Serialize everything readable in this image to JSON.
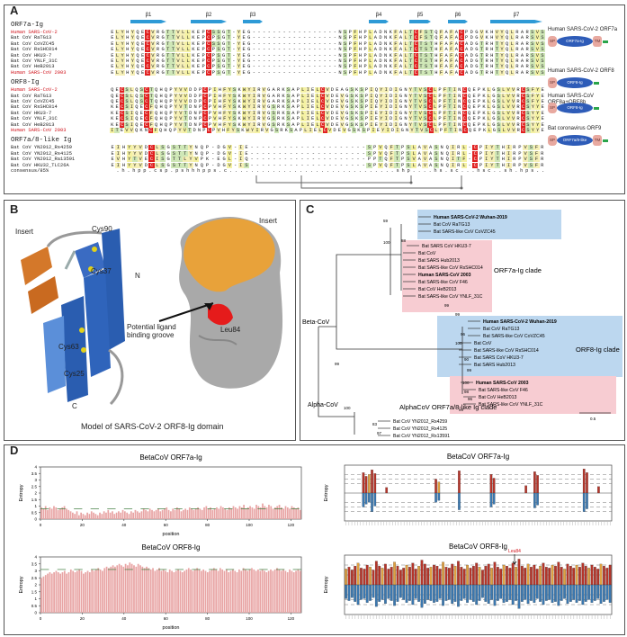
{
  "figure": {
    "panel_labels": [
      "A",
      "B",
      "C",
      "D"
    ]
  },
  "panelA": {
    "strand_labels": [
      "β1",
      "β2",
      "β3",
      "β4",
      "β5",
      "β6",
      "β7"
    ],
    "groups": [
      {
        "title": "ORF7a-Ig",
        "rows": [
          {
            "name": "Human SARS-CoV-2",
            "seq": "ELYHYQECVRGTTVLLKEPCSSGT-YEG-----------------NSPFHPLADNKFALTCFSTQFAFACPDGVKHVYQLRARSVS",
            "red": true
          },
          {
            "name": "Bat CoV RaTG13",
            "seq": "ELYHYQECVRGTTVLLKEPCPSGT-YEG-----------------NSPFHPLADNKFALTCFSTQFAFACPDGVKHVYQLRARSVS",
            "red": false
          },
          {
            "name": "Bat CoV CoVZC45",
            "seq": "ELYHYQECVRGTTVLLKEPCSSGT-YEG-----------------NSPFHPLADNKFALTCTSTHFAFACADGTRHTYQLRARSVS",
            "red": false
          },
          {
            "name": "Bat CoV RsSHC014",
            "seq": "ELYHYQECVRGTTVLLKEPCPSGT-YEG-----------------NSPFHPLADNKFALTCTSTHFAFACADGTRHTYQLRARSVS",
            "red": false
          },
          {
            "name": "Bat CoV HKU3-7",
            "seq": "ELYHYQECVRGTTVLLKEPCPSGT-YEG-----------------NSPFHPLADNKFALTCTSTHFAFACADGTRHTYQLRARSVS",
            "red": false
          },
          {
            "name": "Bat CoV YNLF_31C",
            "seq": "ELYHYQECVRGTTVLLKEPCPSGT-YEG-----------------NSPFHPLADNKFALTCTSTHFAFACADGTRHTYQLRARSVS",
            "red": false
          },
          {
            "name": "Bat CoV HeB2013",
            "seq": "ELYHYQECVRGTTVLLKEPCPSGT-YEG-----------------NSPFHPLADNKFALTCTSTHFAFACADGTRHTYQLRARSVS",
            "red": false
          },
          {
            "name": "Human SARS-CoV 2003",
            "seq": "ELYHYQECVRGTTVLLKEPCPSGT-YEG-----------------NSPFHPLADNKFALTCTSTHFAFACADGTRHTYQLRARSVS",
            "red": true
          }
        ]
      },
      {
        "title": "ORF8-Ig",
        "rows": [
          {
            "name": "Human SARS-CoV-2",
            "seq": "QECSLQSCTQHQPYVVDDPCPIHFYSKWYIRVGARKSAPLIELCVDEAGSKSPIQYIDIGNYTVSCLPFTINCQEPKLGSLVVRCSFYE",
            "red": true
          },
          {
            "name": "Bat CoV RaTG13",
            "seq": "QECSLQSCTQHQPYVVDDPCPIHFYSKWYIRVGARKSAPLIELCVDEVGSKSPIQYIDIGNYTVSCLPFTINCQEPKLGSLVVRCSFYE",
            "red": false
          },
          {
            "name": "Bat CoV CoVZC45",
            "seq": "QECSLQSCTQHQPYVVDDPCPIHFYSKWYIRVGARKSAPLIELCVDEVGSKSPIQYIDIGNYTVSCLPFTINCQEPKLGSLVVRCSFYE",
            "red": false
          },
          {
            "name": "Bat CoV RsSHC014",
            "seq": "KECSIQECFQHQPYVTDNPCPVHFYSKWYIRVGSRKSAPLIELCVDEVGSKSPIEYIDIGNYTVSCLPFTINCQEPKLGSLVVRCSYYE",
            "red": false
          },
          {
            "name": "Bat CoV HKU3-7",
            "seq": "KECSIQECFQHQPYVTDNPCPVHFYSKWYIRVGSRKSAPLIELCVDEVGSKSPIEYIDIGNYTVSCLPFTINCQEPKLGSLVVRCSYYE",
            "red": false
          },
          {
            "name": "Bat CoV YNLF_31C",
            "seq": "KECSIQECFQHQPYVTDNPCPVHFYSKWYIRVGSRKSAPLIELCVDEVGSKSPIEYIDIGNYTVSCLPFTINCQEPKLGSLVVRCSYYE",
            "red": false
          },
          {
            "name": "Bat CoV HeB2013",
            "seq": "KECSIQECFQHQPYVTDNPCPVHFYSKWYIRVGSRKSAPLIELCVDEVGSKSPIEYIDIGNYTVSCLPFTINCQEPKLGSLVVRCSYYE",
            "red": false
          },
          {
            "name": "Human SARS-CoV 2003",
            "seq": "ITEVVQKNCFQHQPYVTDNPCPVHFYSKWYIRVGSRKSAPLIELCVDEVGSKSPIEYIDIGNYTVSCLPFTINCQEPKLGSLVVRCSYYE",
            "red": true
          }
        ]
      },
      {
        "title": "ORF7a/8-like Ig",
        "rows": [
          {
            "name": "Bat CoV YN2012_Rs4259",
            "seq": "EIHYYVDCLSGSTTYNQP-DGV-IE---------------------SPVQFTPSLAVASNQIRL-CPIYTHIRPVSFR",
            "red": false
          },
          {
            "name": "Bat CoV YN2012_Rs4125",
            "seq": "EIHYYVDCLSGSTTYNQP-DGV-IE---------------------SPVQFTPSLAVASNQIRL-CPIYTHIRPVSFR",
            "red": false
          },
          {
            "name": "Bat CoV YN2012_Ra13591",
            "seq": "EVHYTVECISGTTLYVPK-EGL-IQ---------------------PPTQFTPSVAVASNQITF-CPIYTHIRPVSFR",
            "red": false
          },
          {
            "name": "Bat CoV HKU32_TLC26A",
            "seq": "EIHYYVDCLSGSTTYNQP-DGV-IS---------------------SPVQFTPSLAVASNQIRL-CPIYTHIRPVSFR",
            "red": false
          },
          {
            "name": "consensus/85%",
            "seq": " .h.hpp.csp.pshhhpps.c...............................shp....hs.sc...hsc..sh.hps..",
            "red": false
          }
        ]
      }
    ],
    "legend": [
      {
        "title": "Human SARS-CoV-2 ORF7a",
        "domains": [
          "SP",
          "ORF7a-Ig",
          "TM"
        ]
      },
      {
        "title": "Human SARS-CoV-2 ORF8",
        "domains": [
          "SP",
          "ORF8-Ig"
        ]
      },
      {
        "title": "Human SARS-CoV ORF8a+ORF8b",
        "domains": [
          "SP",
          "ORF8-Ig"
        ]
      },
      {
        "title": "Bat coronavirus ORF9",
        "domains": [
          "SP",
          "ORF7a/8-like",
          "TM"
        ]
      }
    ]
  },
  "panelB": {
    "labels": {
      "insert_left": "Insert",
      "cys90": "Cys90",
      "cys37": "Cys37",
      "n": "N",
      "cys63": "Cys63",
      "cys25": "Cys25",
      "c": "C",
      "insert_right": "Insert",
      "groove": "Potential ligand binding groove",
      "leu84": "Leu84"
    },
    "caption": "Model of SARS-CoV-2 ORF8-Ig domain",
    "colors": {
      "helix": "#2a5db0",
      "insert": "#d4782a",
      "surface": "#a9a9a9",
      "surface_insert": "#e8a23a",
      "leu84": "#e51b1b"
    }
  },
  "panelC": {
    "beta_label": "Beta-CoV",
    "alpha_label": "Alpha-CoV",
    "clades": [
      {
        "label": "ORF7a-Ig clade",
        "color": "#bcd7ef",
        "leaves": [
          {
            "name": "Human SARS-CoV-2 Wuhan-2019",
            "bold": true
          },
          {
            "name": "Bat CoV RaTG13",
            "bold": false
          },
          {
            "name": "Bat SARS-like CoV CoVZC45",
            "bold": false
          }
        ]
      },
      {
        "label": "",
        "color": "#f7ccd2",
        "leaves": [
          {
            "name": "Bat SARS CoV HKU3-7",
            "bold": false
          },
          {
            "name": "Bat CoV",
            "bold": false
          },
          {
            "name": "Bat SARS Hub2013",
            "bold": false
          },
          {
            "name": "Bat SARS-like CoV RsSHC014",
            "bold": false
          },
          {
            "name": "Human SARS-CoV 2003",
            "bold": true
          },
          {
            "name": "Bat SARS-like CoV F46",
            "bold": false
          },
          {
            "name": "Bat CoV HeB2013",
            "bold": false
          },
          {
            "name": "Bat SARS-like CoV YNLF_31C",
            "bold": false
          }
        ]
      },
      {
        "label": "ORF8-Ig clade",
        "color": "#bcd7ef",
        "leaves": [
          {
            "name": "Human SARS-CoV-2 Wuhan-2019",
            "bold": true
          },
          {
            "name": "Bat CoV RaTG13",
            "bold": false
          },
          {
            "name": "Bat SARS-like CoV CoVZC45",
            "bold": false
          },
          {
            "name": "Bat CoV",
            "bold": false
          },
          {
            "name": "Bat SARS-like CoV RsSHC014",
            "bold": false
          },
          {
            "name": "Bat SARS CoV HKU3-7",
            "bold": false
          },
          {
            "name": "Bat SARS Hub2013",
            "bold": false
          }
        ]
      },
      {
        "label": "",
        "color": "#f7ccd2",
        "leaves": [
          {
            "name": "Human SARS-CoV 2003",
            "bold": true
          },
          {
            "name": "Bat SARS-like CoV F46",
            "bold": false
          },
          {
            "name": "Bat CoV HeB2013",
            "bold": false
          },
          {
            "name": "Bat SARS-like CoV YNLF_31C",
            "bold": false
          }
        ]
      },
      {
        "label": "AlphaCoV ORF7a/8-like Ig clade",
        "color": "#ffffff",
        "leaves": [
          {
            "name": "Bat CoV YN2012_Rs4259",
            "bold": false
          },
          {
            "name": "Bat CoV YN2012_Rs4125",
            "bold": false
          },
          {
            "name": "Bat CoV YN2012_Rs13591",
            "bold": false
          },
          {
            "name": "Bat CoV HKU32_TLC26A",
            "bold": false
          }
        ]
      }
    ],
    "bootstrap": [
      "59",
      "100",
      "88",
      "99",
      "99",
      "100",
      "99",
      "96",
      "90",
      "99",
      "100",
      "98",
      "96",
      "99",
      "100",
      "83",
      "97"
    ],
    "scale": "0.5"
  },
  "chart_data": [
    {
      "type": "bar",
      "title": "BetaCoV ORF7a-Ig",
      "xlabel": "position",
      "ylabel": "Entropy",
      "xlim": [
        0,
        125
      ],
      "ylim": [
        0,
        4
      ],
      "xticks": [
        0,
        20,
        40,
        60,
        80,
        100,
        120
      ],
      "yticks": [
        0,
        0.5,
        1,
        1.5,
        2,
        2.5,
        3,
        3.5,
        4
      ],
      "values": [
        0.9,
        0.8,
        1.0,
        0.7,
        0.9,
        0.8,
        1.0,
        0.9,
        0.7,
        0.8,
        0.9,
        1.0,
        0.8,
        0.7,
        0.6,
        0.5,
        0.4,
        0.6,
        0.3,
        0.5,
        0.4,
        0.3,
        0.5,
        0.4,
        0.6,
        0.5,
        0.4,
        0.3,
        0.5,
        0.4,
        0.6,
        0.5,
        0.7,
        0.5,
        0.6,
        0.4,
        0.5,
        0.6,
        0.5,
        0.7,
        0.6,
        0.5,
        0.4,
        0.6,
        0.5,
        0.7,
        0.6,
        0.5,
        0.6,
        0.8,
        0.7,
        0.6,
        0.8,
        0.7,
        0.6,
        0.7,
        0.8,
        0.6,
        0.7,
        0.8,
        0.9,
        0.7,
        0.6,
        0.8,
        0.7,
        0.9,
        0.8,
        0.6,
        0.7,
        0.8,
        0.7,
        0.9,
        0.8,
        0.7,
        0.8,
        0.9,
        0.8,
        0.7,
        0.9,
        1.0,
        0.8,
        0.9,
        0.7,
        0.8,
        0.9,
        0.8,
        1.0,
        0.9,
        0.8,
        0.7,
        0.9,
        0.8,
        1.0,
        0.9,
        0.8,
        1.0,
        0.9,
        1.1,
        0.8,
        0.9,
        1.0,
        0.9,
        0.8,
        1.1,
        1.0,
        0.9,
        1.2,
        1.0,
        0.9,
        1.1,
        1.0,
        0.8,
        0.9,
        1.0,
        1.1,
        0.9,
        0.8,
        1.0,
        0.9,
        0.8,
        1.0,
        0.9,
        0.8,
        0.9,
        0.7
      ],
      "threshold": 0.8
    },
    {
      "type": "bar",
      "title": "BetaCoV ORF8-Ig",
      "xlabel": "position",
      "ylabel": "Entropy",
      "xlim": [
        0,
        125
      ],
      "ylim": [
        0,
        4
      ],
      "xticks": [
        0,
        20,
        40,
        60,
        80,
        100,
        120
      ],
      "yticks": [
        0,
        0.5,
        1,
        1.5,
        2,
        2.5,
        3,
        3.5,
        4
      ],
      "values": [
        2.5,
        2.6,
        2.7,
        2.8,
        2.9,
        2.8,
        2.9,
        3.0,
        2.9,
        2.8,
        2.9,
        3.0,
        2.8,
        2.9,
        3.1,
        3.0,
        2.9,
        3.0,
        3.1,
        3.0,
        2.8,
        2.9,
        3.0,
        2.9,
        3.1,
        3.0,
        3.1,
        3.2,
        3.1,
        3.0,
        3.2,
        3.3,
        3.2,
        3.3,
        3.4,
        3.3,
        3.4,
        3.5,
        3.4,
        3.3,
        3.5,
        3.4,
        3.6,
        3.5,
        3.4,
        3.3,
        3.5,
        3.4,
        3.3,
        3.2,
        3.3,
        3.2,
        3.1,
        3.2,
        3.0,
        3.1,
        3.2,
        3.0,
        3.1,
        3.0,
        2.9,
        3.1,
        3.0,
        2.9,
        3.0,
        3.1,
        3.0,
        2.9,
        3.0,
        3.1,
        3.2,
        3.1,
        3.0,
        3.1,
        3.2,
        3.1,
        3.0,
        3.1,
        3.0,
        2.9,
        3.0,
        3.1,
        3.2,
        3.1,
        3.0,
        3.2,
        3.1,
        3.0,
        3.1,
        2.9,
        3.0,
        3.1,
        3.0,
        2.9,
        3.1,
        3.0,
        3.2,
        3.1,
        3.0,
        3.1,
        3.2,
        3.1,
        3.0,
        3.1,
        3.0,
        3.1,
        3.0,
        2.9,
        3.0,
        3.1,
        3.0,
        3.1,
        3.2,
        3.1,
        3.0,
        3.1,
        3.0,
        2.9,
        3.1,
        3.0,
        2.9,
        3.0,
        3.1,
        3.0
      ],
      "threshold": 3.1
    },
    {
      "type": "bar",
      "title": "BetaCoV ORF7a-Ig",
      "xlabel": "",
      "ylabel": "Entropy",
      "up": [
        0,
        0,
        0,
        0,
        0,
        0,
        2.2,
        1.8,
        2.0,
        2.5,
        2.1,
        0,
        0,
        0,
        0.6,
        0,
        0,
        0,
        0,
        0,
        0,
        0,
        0,
        0,
        0,
        0,
        0,
        0,
        0,
        0,
        0,
        1.5,
        1.2,
        0,
        0,
        0,
        0,
        0,
        0,
        2.4,
        0,
        0,
        0,
        0,
        0,
        0,
        0,
        0,
        0,
        0,
        2.0,
        1.6,
        0,
        0,
        0,
        0,
        0,
        0,
        0,
        0,
        0,
        0,
        0.8,
        0,
        0,
        2.3,
        1.9,
        0,
        0,
        0,
        0,
        0,
        0,
        0,
        0,
        0,
        0,
        0,
        0,
        0,
        0,
        0,
        2.6,
        2.2,
        0,
        0,
        0,
        0.7,
        0,
        0,
        0,
        0
      ],
      "down": [
        0,
        0,
        0,
        0,
        0,
        0,
        -1.5,
        -1.2,
        -1.0,
        -2.0,
        -1.4,
        0,
        0,
        0,
        0,
        0,
        0,
        0,
        0,
        0,
        0,
        0,
        0,
        0,
        0,
        0,
        0,
        0,
        0,
        0,
        0,
        -1.0,
        -0.8,
        0,
        0,
        0,
        0,
        0,
        0,
        -1.8,
        0,
        0,
        0,
        0,
        0,
        0,
        0,
        0,
        0,
        0,
        -1.5,
        -1.2,
        0,
        0,
        0,
        0,
        0,
        0,
        0,
        0,
        0,
        0,
        0,
        0,
        0,
        -1.6,
        -1.3,
        0,
        0,
        0,
        0,
        0,
        0,
        0,
        0,
        0,
        0,
        0,
        0,
        0,
        0,
        0,
        -2.0,
        -1.7,
        0,
        0,
        0,
        0,
        0,
        0,
        0,
        0
      ]
    },
    {
      "type": "bar",
      "title": "BetaCoV ORF8-Ig",
      "xlabel": "",
      "ylabel": "Entropy",
      "annotation": "Leu84",
      "up": [
        1.6,
        1.8,
        1.5,
        1.9,
        2.2,
        1.7,
        1.6,
        2.0,
        1.8,
        1.5,
        2.4,
        1.9,
        1.7,
        2.1,
        1.6,
        1.8,
        2.3,
        1.9,
        1.5,
        1.7,
        2.0,
        1.8,
        2.2,
        1.6,
        1.9,
        2.5,
        2.1,
        1.7,
        1.8,
        2.0,
        1.9,
        1.6,
        2.3,
        1.8,
        1.7,
        2.1,
        1.9,
        2.4,
        1.8,
        1.6,
        2.0,
        1.7,
        1.9,
        2.2,
        1.8,
        1.5,
        1.9,
        2.1,
        1.7,
        2.3,
        1.8,
        1.6,
        2.0,
        1.9,
        1.7,
        2.2,
        1.8,
        2.6,
        1.9,
        1.7,
        2.1,
        1.8,
        2.0,
        1.6,
        1.9,
        2.2,
        1.8,
        1.7,
        2.0,
        1.9,
        2.3,
        1.8,
        1.6,
        2.1,
        1.9,
        1.7,
        2.0,
        1.8,
        2.2,
        1.9,
        1.7,
        2.0,
        1.8,
        1.6,
        2.1,
        1.9,
        1.7,
        2.0
      ],
      "down": [
        -1.4,
        -1.6,
        -1.3,
        -1.7,
        -2.0,
        -1.5,
        -1.4,
        -1.8,
        -1.6,
        -1.3,
        -2.2,
        -1.7,
        -1.5,
        -1.9,
        -1.4,
        -1.6,
        -2.1,
        -1.7,
        -1.3,
        -1.5,
        -1.8,
        -1.6,
        -2.0,
        -1.4,
        -1.7,
        -2.3,
        -1.9,
        -1.5,
        -1.6,
        -1.8,
        -1.7,
        -1.4,
        -2.1,
        -1.6,
        -1.5,
        -1.9,
        -1.7,
        -2.2,
        -1.6,
        -1.4,
        -1.8,
        -1.5,
        -1.7,
        -2.0,
        -1.6,
        -1.3,
        -1.7,
        -1.9,
        -1.5,
        -2.1,
        -1.6,
        -1.4,
        -1.8,
        -1.7,
        -1.5,
        -2.0,
        -1.6,
        -2.4,
        -1.7,
        -1.5,
        -1.9,
        -1.6,
        -1.8,
        -1.4,
        -1.7,
        -2.0,
        -1.6,
        -1.5,
        -1.8,
        -1.7,
        -2.1,
        -1.6,
        -1.4,
        -1.9,
        -1.7,
        -1.5,
        -1.8,
        -1.6,
        -2.0,
        -1.7,
        -1.5,
        -1.8,
        -1.6,
        -1.4,
        -1.9,
        -1.7,
        -1.5,
        -1.8
      ]
    }
  ]
}
